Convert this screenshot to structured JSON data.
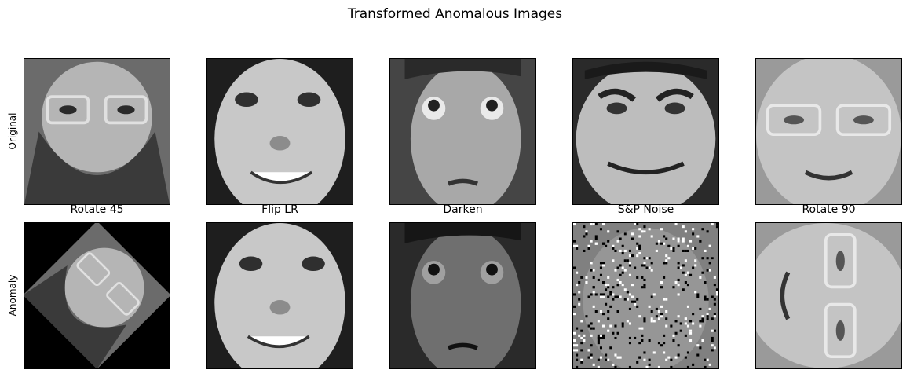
{
  "suptitle": "Transformed Anomalous Images",
  "row_labels": {
    "original": "Original",
    "anomaly": "Anomaly"
  },
  "titles": [
    "Rotate 45",
    "Flip LR",
    "Darken",
    "S&P Noise",
    "Rotate 90"
  ],
  "faces": {
    "f1": {
      "desc": "bearded-man-glasses"
    },
    "f2": {
      "desc": "smiling-man"
    },
    "f3": {
      "desc": "young-man-eyes-up"
    },
    "f4": {
      "desc": "grinning-man"
    },
    "f5": {
      "desc": "man-glasses-smile"
    }
  }
}
